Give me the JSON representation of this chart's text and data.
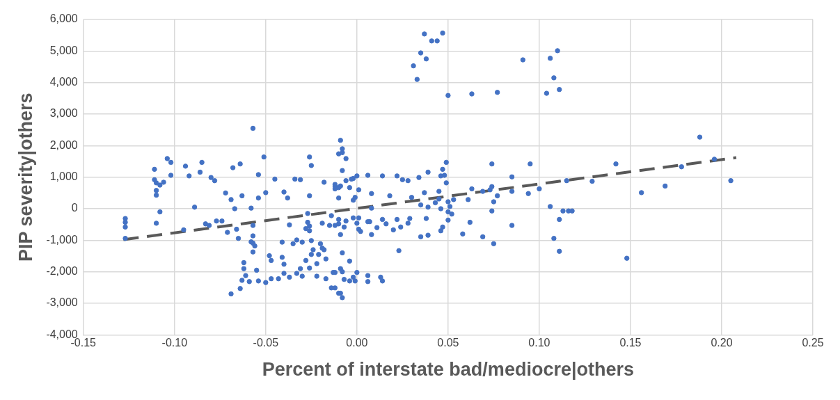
{
  "chart_data": {
    "type": "scatter",
    "xlabel": "Percent of interstate bad/mediocre|others",
    "ylabel": "PIP severity|others",
    "xlim": [
      -0.15,
      0.25
    ],
    "xticks": [
      {
        "value": -0.15,
        "label": "-0.15"
      },
      {
        "value": -0.1,
        "label": "-0.10"
      },
      {
        "value": -0.05,
        "label": "-0.05"
      },
      {
        "value": 0,
        "label": "0.00"
      },
      {
        "value": 0.05,
        "label": "0.05"
      },
      {
        "value": 0.1,
        "label": "0.10"
      },
      {
        "value": 0.15,
        "label": "0.15"
      },
      {
        "value": 0.2,
        "label": "0.20"
      },
      {
        "value": 0.25,
        "label": "0.25"
      }
    ],
    "ylim": [
      -4000,
      6000
    ],
    "yticks": [
      {
        "value": -4000,
        "label": "-4,000"
      },
      {
        "value": -3000,
        "label": "-3,000"
      },
      {
        "value": -2000,
        "label": "-2,000"
      },
      {
        "value": -1000,
        "label": "-1,000"
      },
      {
        "value": 0,
        "label": "0"
      },
      {
        "value": 1000,
        "label": "1,000"
      },
      {
        "value": 2000,
        "label": "2,000"
      },
      {
        "value": 3000,
        "label": "3,000"
      },
      {
        "value": 4000,
        "label": "4,000"
      },
      {
        "value": 5000,
        "label": "5,000"
      },
      {
        "value": 6000,
        "label": "6,000"
      }
    ],
    "grid": true,
    "legend": false,
    "marker": "circle",
    "series": [
      {
        "type": "scatter",
        "color": "#4472c4",
        "x": [
          -0.127,
          -0.127,
          -0.127,
          -0.127,
          -0.111,
          -0.111,
          -0.11,
          -0.108,
          -0.106,
          -0.11,
          -0.11,
          -0.108,
          -0.11,
          -0.104,
          -0.102,
          -0.102,
          -0.094,
          -0.092,
          -0.086,
          -0.085,
          -0.08,
          -0.078,
          -0.089,
          -0.095,
          -0.083,
          -0.081,
          -0.077,
          -0.074,
          -0.072,
          -0.069,
          -0.067,
          -0.068,
          -0.064,
          -0.063,
          -0.071,
          -0.066,
          -0.065,
          -0.057,
          -0.051,
          -0.054,
          -0.054,
          -0.05,
          -0.058,
          -0.057,
          -0.057,
          -0.058,
          -0.057,
          -0.056,
          -0.057,
          -0.062,
          -0.062,
          -0.061,
          -0.063,
          -0.069,
          -0.064,
          -0.059,
          -0.055,
          -0.054,
          -0.05,
          -0.047,
          -0.043,
          -0.048,
          -0.047,
          -0.041,
          -0.04,
          -0.04,
          -0.037,
          -0.033,
          -0.031,
          -0.03,
          -0.028,
          -0.026,
          -0.022,
          -0.041,
          -0.035,
          -0.033,
          -0.03,
          -0.037,
          -0.045,
          -0.04,
          -0.038,
          -0.034,
          -0.031,
          -0.026,
          -0.025,
          -0.026,
          -0.027,
          -0.027,
          -0.026,
          -0.028,
          -0.026,
          -0.025,
          -0.024,
          -0.025,
          -0.021,
          -0.022,
          -0.02,
          -0.019,
          -0.018,
          -0.017,
          -0.017,
          -0.014,
          -0.012,
          -0.01,
          -0.008,
          -0.009,
          -0.013,
          -0.012,
          -0.009,
          -0.008,
          -0.007,
          -0.004,
          -0.002,
          0.0,
          -0.001,
          -0.008,
          -0.004,
          -0.018,
          -0.019,
          -0.015,
          -0.012,
          -0.014,
          -0.01,
          -0.01,
          -0.007,
          -0.009,
          -0.006,
          -0.002,
          0.0,
          0.001,
          0.001,
          0.002,
          -0.01,
          -0.012,
          -0.012,
          -0.01,
          -0.009,
          -0.012,
          -0.009,
          -0.008,
          -0.01,
          -0.008,
          -0.006,
          -0.008,
          -0.006,
          -0.003,
          -0.002,
          0.0,
          -0.004,
          0.001,
          -0.002,
          -0.001,
          0.006,
          0.008,
          0.008,
          0.006,
          0.007,
          0.008,
          0.006,
          0.006,
          0.037,
          0.041,
          0.044,
          0.047,
          0.035,
          0.038,
          0.031,
          0.033,
          0.05,
          0.063,
          0.077,
          0.091,
          0.106,
          0.11,
          0.108,
          0.104,
          0.111,
          0.014,
          0.022,
          0.025,
          0.028,
          0.034,
          0.039,
          0.046,
          0.048,
          0.047,
          0.049,
          0.049,
          0.018,
          0.03,
          0.037,
          0.045,
          0.043,
          0.045,
          0.035,
          0.039,
          0.046,
          0.05,
          0.051,
          0.05,
          0.052,
          0.053,
          0.05,
          0.047,
          0.046,
          0.038,
          0.035,
          0.039,
          0.029,
          0.028,
          0.024,
          0.022,
          0.02,
          0.014,
          0.016,
          0.011,
          0.023,
          0.014,
          0.013,
          0.058,
          0.062,
          0.061,
          0.063,
          0.069,
          0.075,
          0.074,
          0.075,
          0.077,
          0.074,
          0.073,
          0.069,
          0.074,
          0.085,
          0.085,
          0.085,
          0.094,
          0.095,
          0.1,
          0.106,
          0.111,
          0.108,
          0.111,
          0.113,
          0.116,
          0.118,
          0.115,
          0.129,
          0.142,
          0.148,
          0.156,
          0.169,
          0.178,
          0.188,
          0.196,
          0.205
        ],
        "values": [
          -310,
          -430,
          -580,
          -940,
          1250,
          920,
          820,
          750,
          840,
          580,
          430,
          -100,
          -460,
          1590,
          1470,
          1060,
          1350,
          1040,
          1160,
          1470,
          990,
          890,
          50,
          -670,
          -480,
          -530,
          -390,
          -390,
          500,
          290,
          0,
          1300,
          1420,
          410,
          -750,
          -650,
          -940,
          2550,
          1640,
          1080,
          340,
          510,
          20,
          -530,
          -860,
          -1050,
          -1090,
          -1180,
          -1370,
          -1710,
          -1900,
          -2120,
          -2270,
          -2700,
          -2530,
          -2310,
          -1950,
          -2290,
          -2340,
          -2220,
          -2220,
          -1490,
          -1640,
          -1540,
          -1760,
          -2050,
          -2170,
          -2050,
          -1900,
          -2140,
          -1640,
          -1880,
          -2140,
          -1060,
          -1110,
          -990,
          -1060,
          -510,
          940,
          530,
          340,
          940,
          920,
          1640,
          1370,
          410,
          -150,
          -430,
          -550,
          -630,
          -700,
          -1010,
          -1300,
          -1450,
          -1450,
          -1740,
          -1110,
          -1250,
          -1300,
          -1590,
          -2220,
          -2510,
          -2510,
          -2680,
          -2820,
          -2680,
          -2020,
          -2020,
          -1900,
          -2000,
          -2240,
          -2290,
          -2170,
          -2020,
          -2290,
          -1400,
          -1660,
          840,
          -460,
          -530,
          -530,
          -220,
          -340,
          -480,
          -580,
          -820,
          -390,
          -290,
          -460,
          -290,
          -650,
          -720,
          340,
          720,
          630,
          670,
          720,
          770,
          2170,
          1900,
          1740,
          1780,
          1590,
          1210,
          890,
          940,
          960,
          1040,
          670,
          600,
          270,
          360,
          1060,
          480,
          20,
          -410,
          -410,
          -820,
          -2120,
          -2310,
          5540,
          5320,
          5320,
          5570,
          4940,
          4750,
          4530,
          4100,
          3590,
          3640,
          3690,
          4720,
          4770,
          5010,
          4150,
          3660,
          3780,
          1040,
          1040,
          920,
          890,
          990,
          1160,
          1040,
          1060,
          1250,
          1470,
          820,
          410,
          360,
          510,
          550,
          190,
          310,
          120,
          50,
          0,
          220,
          70,
          -100,
          -170,
          290,
          -360,
          -580,
          -700,
          -310,
          -890,
          -840,
          -310,
          -460,
          -580,
          -340,
          -670,
          -340,
          -480,
          -600,
          -1330,
          -2290,
          -2170,
          -800,
          -430,
          290,
          630,
          -890,
          -1110,
          -70,
          220,
          410,
          700,
          600,
          550,
          1420,
          1010,
          550,
          -530,
          480,
          1420,
          630,
          70,
          -340,
          -940,
          -1350,
          -70,
          -70,
          -70,
          890,
          870,
          1420,
          -1570,
          510,
          720,
          1330,
          2270,
          1570,
          890
        ]
      },
      {
        "type": "line",
        "color": "#595959",
        "line_style": "dashed",
        "marker": "none",
        "x": [
          -0.128,
          0.208
        ],
        "values": [
          -980,
          1620
        ]
      }
    ]
  }
}
